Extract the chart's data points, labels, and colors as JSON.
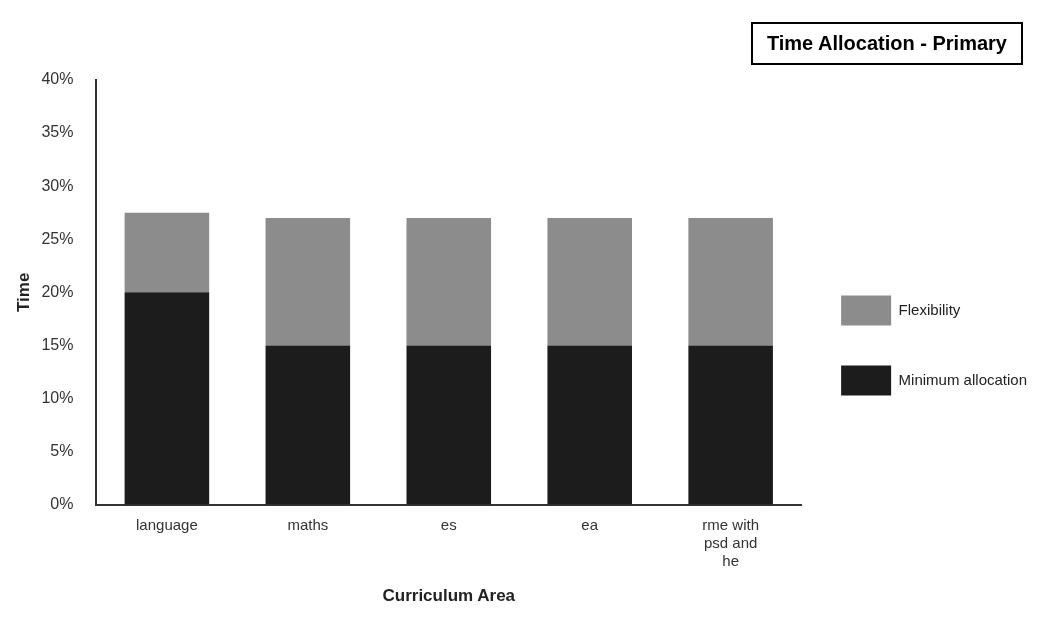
{
  "chart_data": {
    "type": "bar",
    "title": "Time Allocation - Primary",
    "xlabel": "Curriculum Area",
    "ylabel": "Time",
    "categories": [
      "language",
      "maths",
      "es",
      "ea",
      "rme with psd and he"
    ],
    "stacked": true,
    "series": [
      {
        "name": "Minimum allocation",
        "color": "#1c1c1c",
        "values": [
          20,
          15,
          15,
          15,
          15
        ]
      },
      {
        "name": "Flexibility",
        "color": "#8c8c8c",
        "values": [
          7.5,
          12,
          12,
          12,
          12
        ]
      }
    ],
    "ylim": [
      0,
      40
    ],
    "yticks": [
      {
        "value": 0,
        "label": "0%"
      },
      {
        "value": 5,
        "label": "5%"
      },
      {
        "value": 10,
        "label": "10%"
      },
      {
        "value": 15,
        "label": "15%"
      },
      {
        "value": 20,
        "label": "20%"
      },
      {
        "value": 25,
        "label": "25%"
      },
      {
        "value": 30,
        "label": "30%"
      },
      {
        "value": 35,
        "label": "35%"
      },
      {
        "value": 40,
        "label": "40%"
      }
    ],
    "grid": false,
    "legend": "right"
  }
}
